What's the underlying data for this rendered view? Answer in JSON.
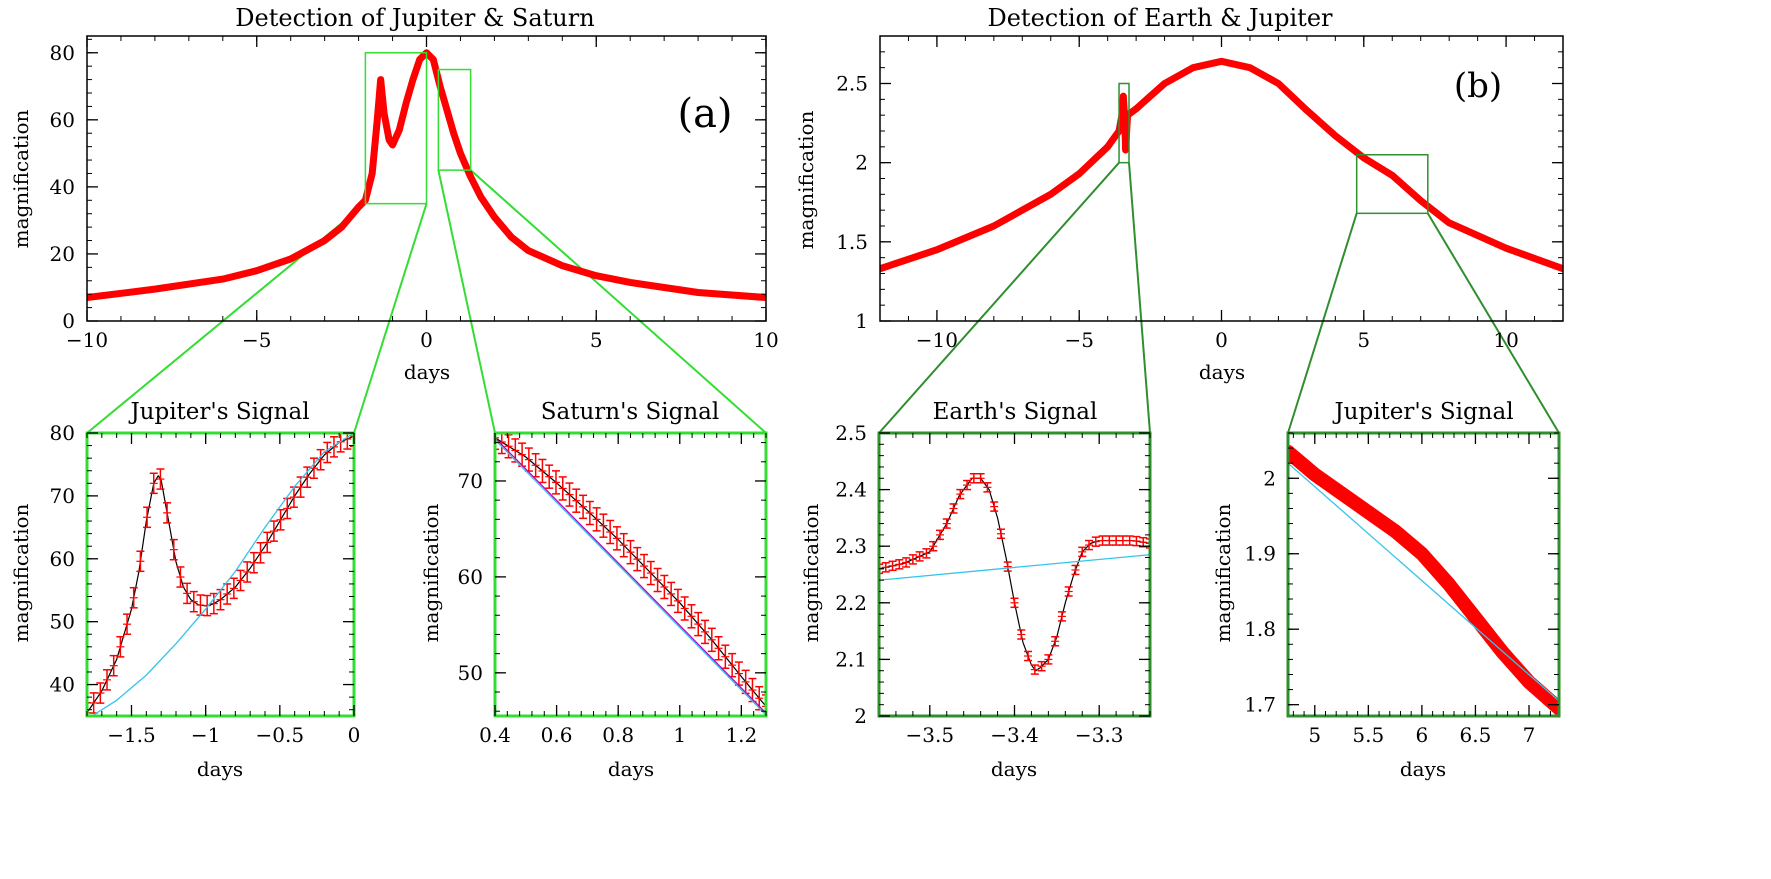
{
  "colors": {
    "data": "#ff0000",
    "model_cyan": "#33c4ea",
    "model_magenta": "#c000c0",
    "frame": "#000000",
    "zoom_green_a": "#33dd33",
    "zoom_green_b": "#2f8f2f"
  },
  "chart_data": [
    {
      "id": "a_top",
      "type": "line",
      "title": "Detection of Jupiter & Saturn",
      "panel_label": "(a)",
      "xlabel": "days",
      "ylabel": "magnification",
      "xlim": [
        -10,
        10
      ],
      "ylim": [
        0,
        85
      ],
      "xticks": [
        "−10",
        "−5",
        "0",
        "5",
        "10"
      ],
      "xtick_values": [
        -10,
        -5,
        0,
        5,
        10
      ],
      "yticks": [
        "0",
        "20",
        "40",
        "60",
        "80"
      ],
      "ytick_values": [
        0,
        20,
        40,
        60,
        80
      ],
      "zoom_boxes": [
        {
          "x": [
            -1.8,
            0
          ],
          "y": [
            35,
            80
          ]
        },
        {
          "x": [
            0.35,
            1.3
          ],
          "y": [
            45,
            75
          ]
        }
      ],
      "series": [
        {
          "x": [
            -10,
            -8,
            -6,
            -5,
            -4,
            -3,
            -2.5,
            -2,
            -1.8,
            -1.6,
            -1.45,
            -1.35,
            -1.25,
            -1.1,
            -1.0,
            -0.8,
            -0.6,
            -0.4,
            -0.2,
            0,
            0.2,
            0.4,
            0.6,
            0.8,
            1.0,
            1.3,
            1.6,
            2,
            2.5,
            3,
            4,
            5,
            6,
            8,
            10
          ],
          "y": [
            7,
            9.5,
            12.5,
            15,
            18.5,
            24,
            28,
            34,
            36,
            44,
            60,
            72,
            62,
            54,
            52.5,
            57,
            65,
            72,
            78,
            80,
            78,
            70,
            63,
            56,
            50,
            43,
            37,
            31,
            25,
            21,
            16.5,
            13.5,
            11.5,
            8.5,
            7
          ]
        }
      ]
    },
    {
      "id": "b_top",
      "type": "line",
      "title": "Detection of Earth & Jupiter",
      "panel_label": "(b)",
      "xlabel": "days",
      "ylabel": "magnification",
      "xlim": [
        -12,
        12
      ],
      "ylim": [
        1,
        2.8
      ],
      "xticks": [
        "−10",
        "−5",
        "0",
        "5",
        "10"
      ],
      "xtick_values": [
        -10,
        -5,
        0,
        5,
        10
      ],
      "yticks": [
        "1",
        "1.5",
        "2",
        "2.5"
      ],
      "ytick_values": [
        1,
        1.5,
        2,
        2.5
      ],
      "zoom_boxes": [
        {
          "x": [
            -3.6,
            -3.25
          ],
          "y": [
            2.0,
            2.5
          ]
        },
        {
          "x": [
            4.75,
            7.25
          ],
          "y": [
            1.68,
            2.05
          ]
        }
      ],
      "series": [
        {
          "x": [
            -12,
            -10,
            -8,
            -6,
            -5,
            -4,
            -3.6,
            -3.5,
            -3.45,
            -3.4,
            -3.37,
            -3.3,
            -3,
            -2,
            -1,
            0,
            1,
            2,
            3,
            4,
            5,
            6,
            7,
            8,
            10,
            12
          ],
          "y": [
            1.33,
            1.45,
            1.6,
            1.8,
            1.93,
            2.1,
            2.2,
            2.3,
            2.42,
            2.28,
            2.08,
            2.3,
            2.34,
            2.5,
            2.6,
            2.64,
            2.6,
            2.5,
            2.33,
            2.17,
            2.03,
            1.92,
            1.76,
            1.62,
            1.46,
            1.33
          ]
        }
      ]
    },
    {
      "id": "jupiter_a",
      "type": "line",
      "title": "Jupiter's Signal",
      "xlabel": "days",
      "ylabel": "magnification",
      "xlim": [
        -1.8,
        0
      ],
      "ylim": [
        35,
        80
      ],
      "xticks": [
        "−1.5",
        "−1",
        "−0.5",
        "0"
      ],
      "xtick_values": [
        -1.5,
        -1,
        -0.5,
        0
      ],
      "yticks": [
        "40",
        "50",
        "60",
        "70",
        "80"
      ],
      "ytick_values": [
        40,
        50,
        60,
        70,
        80
      ],
      "series": [
        {
          "x": [
            -1.8,
            -1.7,
            -1.6,
            -1.5,
            -1.45,
            -1.4,
            -1.35,
            -1.32,
            -1.3,
            -1.25,
            -1.2,
            -1.15,
            -1.1,
            -1.05,
            -1.0,
            -0.95,
            -0.9,
            -0.8,
            -0.7,
            -0.6,
            -0.5,
            -0.4,
            -0.3,
            -0.2,
            -0.1,
            0
          ],
          "y": [
            35.5,
            39,
            44,
            52,
            58,
            66,
            72,
            73.2,
            72.5,
            66,
            59.5,
            55.5,
            53.5,
            52.7,
            52.5,
            52.8,
            53.5,
            55.5,
            58.5,
            62,
            66,
            70,
            73.5,
            76.5,
            78.5,
            79.5
          ]
        },
        {
          "x": [
            -1.8,
            -1.6,
            -1.4,
            -1.2,
            -1.0,
            -0.8,
            -0.6,
            -0.4,
            -0.2,
            0
          ],
          "y": [
            34.5,
            37.5,
            41.5,
            46.5,
            52,
            58,
            65,
            71.5,
            77,
            80
          ]
        }
      ]
    },
    {
      "id": "saturn_a",
      "type": "line",
      "title": "Saturn's Signal",
      "xlabel": "days",
      "ylabel": "magnification",
      "xlim": [
        0.4,
        1.28
      ],
      "ylim": [
        45.5,
        75
      ],
      "xticks": [
        "0.4",
        "0.6",
        "0.8",
        "1",
        "1.2"
      ],
      "xtick_values": [
        0.4,
        0.6,
        0.8,
        1.0,
        1.2
      ],
      "yticks": [
        "50",
        "60",
        "70"
      ],
      "ytick_values": [
        50,
        60,
        70
      ],
      "series": [
        {
          "x": [
            0.4,
            0.5,
            0.6,
            0.7,
            0.8,
            0.9,
            1.0,
            1.1,
            1.2,
            1.28
          ],
          "y": [
            74.5,
            72.5,
            69.8,
            66.9,
            63.9,
            60.6,
            57.3,
            53.6,
            49.6,
            46.5
          ]
        },
        {
          "x": [
            0.4,
            1.28
          ],
          "y": [
            74.5,
            45.8
          ]
        },
        {
          "x": [
            0.4,
            1.28
          ],
          "y": [
            74.3,
            45.6
          ]
        }
      ]
    },
    {
      "id": "earth_b",
      "type": "line",
      "title": "Earth's Signal",
      "xlabel": "days",
      "ylabel": "magnification",
      "xlim": [
        -3.56,
        -3.24
      ],
      "ylim": [
        2.0,
        2.5
      ],
      "xticks": [
        "−3.5",
        "−3.4",
        "−3.3"
      ],
      "xtick_values": [
        -3.5,
        -3.4,
        -3.3
      ],
      "yticks": [
        "2",
        "2.1",
        "2.2",
        "2.3",
        "2.4",
        "2.5"
      ],
      "ytick_values": [
        2.0,
        2.1,
        2.2,
        2.3,
        2.4,
        2.5
      ],
      "series": [
        {
          "x": [
            -3.56,
            -3.53,
            -3.5,
            -3.48,
            -3.465,
            -3.45,
            -3.44,
            -3.43,
            -3.42,
            -3.41,
            -3.4,
            -3.39,
            -3.38,
            -3.375,
            -3.37,
            -3.36,
            -3.35,
            -3.34,
            -3.33,
            -3.32,
            -3.31,
            -3.3,
            -3.28,
            -3.26,
            -3.24
          ],
          "y": [
            2.26,
            2.27,
            2.29,
            2.34,
            2.39,
            2.42,
            2.42,
            2.4,
            2.35,
            2.28,
            2.2,
            2.13,
            2.09,
            2.08,
            2.085,
            2.1,
            2.14,
            2.2,
            2.25,
            2.29,
            2.305,
            2.31,
            2.31,
            2.31,
            2.305
          ]
        },
        {
          "x": [
            -3.56,
            -3.24
          ],
          "y": [
            2.24,
            2.285
          ]
        }
      ]
    },
    {
      "id": "jupiter_b",
      "type": "line",
      "title": "Jupiter's Signal",
      "xlabel": "days",
      "ylabel": "magnification",
      "xlim": [
        4.75,
        7.28
      ],
      "ylim": [
        1.685,
        2.06
      ],
      "xticks": [
        "5",
        "5.5",
        "6",
        "6.5",
        "7"
      ],
      "xtick_values": [
        5,
        5.5,
        6,
        6.5,
        7
      ],
      "yticks": [
        "1.7",
        "1.8",
        "1.9",
        "2"
      ],
      "ytick_values": [
        1.7,
        1.8,
        1.9,
        2.0
      ],
      "series": [
        {
          "x": [
            4.75,
            5.0,
            5.25,
            5.5,
            5.75,
            6.0,
            6.25,
            6.5,
            6.75,
            7.0,
            7.28
          ],
          "y": [
            2.035,
            2.005,
            1.98,
            1.955,
            1.93,
            1.9,
            1.86,
            1.815,
            1.77,
            1.73,
            1.695
          ]
        },
        {
          "x": [
            4.75,
            7.28
          ],
          "y": [
            2.02,
            1.705
          ]
        }
      ]
    }
  ]
}
